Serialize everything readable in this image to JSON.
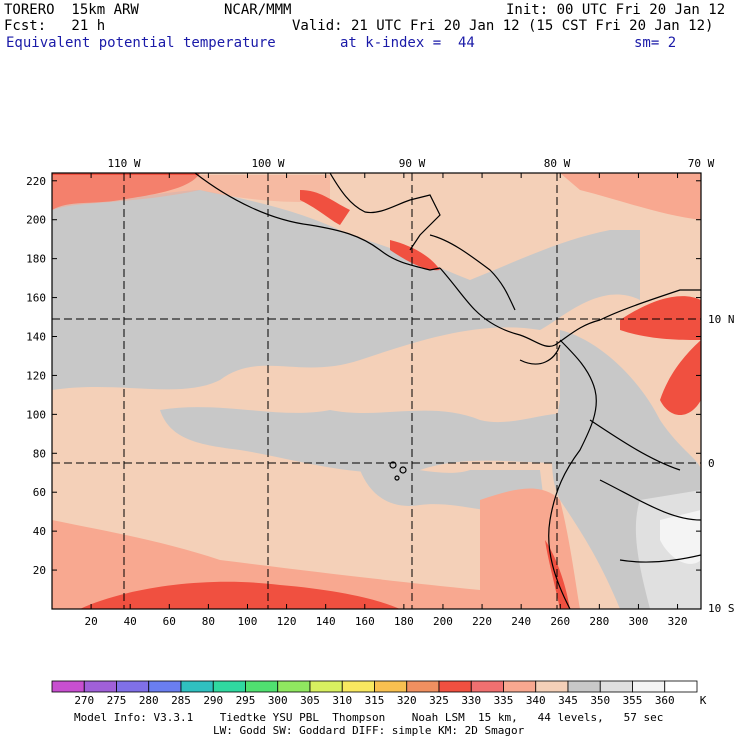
{
  "header": {
    "model": "TORERO  15km ARW",
    "org": "NCAR/MMM",
    "init": "Init: 00 UTC Fri 20 Jan 12",
    "fcst": "Fcst:   21 h",
    "valid": "Valid: 21 UTC Fri 20 Jan 12 (15 CST Fri 20 Jan 12)",
    "field": "Equivalent potential temperature",
    "kindex": "at k-index =  44",
    "sm": "sm= 2"
  },
  "map": {
    "lon_labels": [
      "110 W",
      "100 W",
      "90 W",
      "80 W",
      "70 W"
    ],
    "lat_labels": [
      "10 N",
      "0",
      "10 S"
    ],
    "y_ticks": [
      "220",
      "200",
      "180",
      "160",
      "140",
      "120",
      "100",
      "80",
      "60",
      "40",
      "20"
    ],
    "x_ticks": [
      "20",
      "40",
      "60",
      "80",
      "100",
      "120",
      "140",
      "160",
      "180",
      "200",
      "220",
      "240",
      "260",
      "280",
      "300",
      "320"
    ],
    "ylim": [
      0,
      224
    ],
    "xlim": [
      0,
      332
    ]
  },
  "colorbar": {
    "labels": [
      "270",
      "275",
      "280",
      "285",
      "290",
      "295",
      "300",
      "305",
      "310",
      "315",
      "320",
      "325",
      "330",
      "335",
      "340",
      "345",
      "350",
      "355",
      "360"
    ],
    "unit": "K",
    "colors": [
      "#c84fd0",
      "#a060d8",
      "#8070e8",
      "#6a7ef0",
      "#30c0c0",
      "#30d8a0",
      "#50e070",
      "#90e860",
      "#d8f060",
      "#f8e860",
      "#f8c050",
      "#f09060",
      "#f05040",
      "#f07070",
      "#f8a890",
      "#f4d0b8",
      "#c8c8c8",
      "#e0e0e0",
      "#f4f4f4",
      "#ffffff"
    ]
  },
  "footer": {
    "line1": "Model Info: V3.3.1    Tiedtke YSU PBL  Thompson    Noah LSM  15 km,   44 levels,   57 sec",
    "line2": "LW: Godd SW: Goddard DIFF: simple KM: 2D Smagor"
  }
}
